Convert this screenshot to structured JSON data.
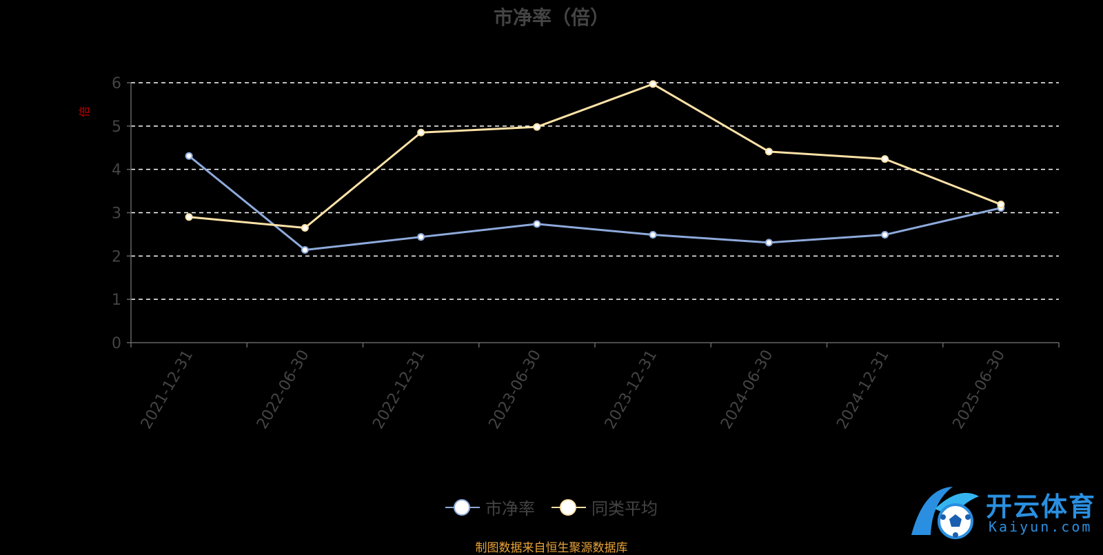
{
  "title": "市净率（倍）",
  "y_unit_label": "倍",
  "source_note": "制图数据来自恒生聚源数据库",
  "watermark": {
    "text": "开云体育",
    "subtext": "Kaiyun.com"
  },
  "legend": [
    {
      "name": "市净率",
      "color": "#8eaadc"
    },
    {
      "name": "同类平均",
      "color": "#fce2a7"
    }
  ],
  "colors": {
    "axis": "#666666",
    "grid": "#ffffff",
    "tick_label": "#444444",
    "unit_label": "#c00000"
  },
  "chart_data": {
    "type": "line",
    "title": "市净率（倍）",
    "ylabel": "倍",
    "categories": [
      "2021-12-31",
      "2022-06-30",
      "2022-12-31",
      "2023-06-30",
      "2023-12-31",
      "2024-06-30",
      "2024-12-31",
      "2025-06-30"
    ],
    "ylim": [
      0,
      6
    ],
    "yticks": [
      0,
      1,
      2,
      3,
      4,
      5,
      6
    ],
    "grid": true,
    "legend_position": "bottom",
    "series": [
      {
        "name": "市净率",
        "values": [
          4.31,
          2.14,
          2.44,
          2.74,
          2.49,
          2.31,
          2.49,
          3.11
        ],
        "color": "#8eaadc"
      },
      {
        "name": "同类平均",
        "values": [
          2.9,
          2.65,
          4.85,
          4.98,
          5.97,
          4.41,
          4.24,
          3.19
        ],
        "color": "#fce2a7"
      }
    ]
  }
}
